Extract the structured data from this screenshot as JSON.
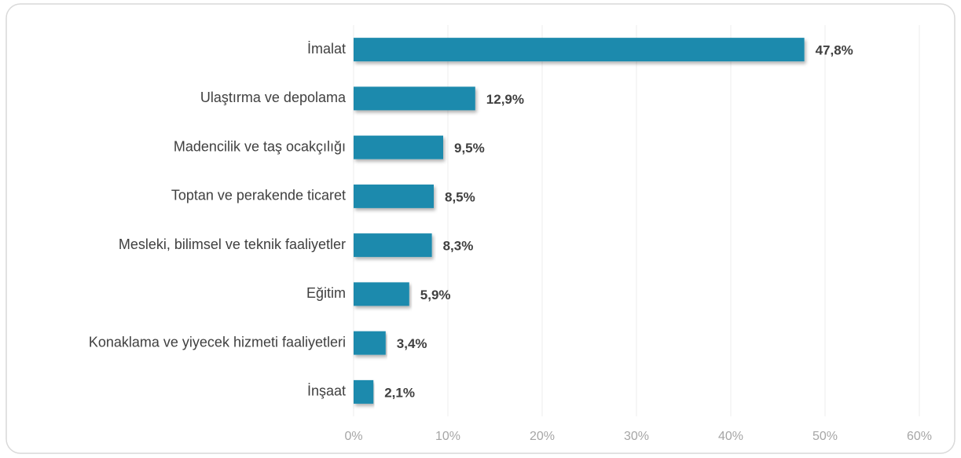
{
  "chart_data": {
    "type": "bar",
    "orientation": "horizontal",
    "categories": [
      "İmalat",
      "Ulaştırma ve depolama",
      "Madencilik ve taş ocakçılığı",
      "Toptan ve perakende ticaret",
      "Mesleki, bilimsel ve teknik faaliyetler",
      "Eğitim",
      "Konaklama ve yiyecek hizmeti faaliyetleri",
      "İnşaat"
    ],
    "values": [
      47.8,
      12.9,
      9.5,
      8.5,
      8.3,
      5.9,
      3.4,
      2.1
    ],
    "value_labels": [
      "47,8%",
      "12,9%",
      "9,5%",
      "8,5%",
      "8,3%",
      "5,9%",
      "3,4%",
      "2,1%"
    ],
    "color": "#1b8aad",
    "xlim": [
      0,
      60
    ],
    "xticks": [
      {
        "value": 0,
        "label": "0%"
      },
      {
        "value": 10,
        "label": "10%"
      },
      {
        "value": 20,
        "label": "20%"
      },
      {
        "value": 30,
        "label": "30%"
      },
      {
        "value": 40,
        "label": "40%"
      },
      {
        "value": 50,
        "label": "50%"
      },
      {
        "value": 60,
        "label": "60%"
      }
    ],
    "grid": true
  }
}
